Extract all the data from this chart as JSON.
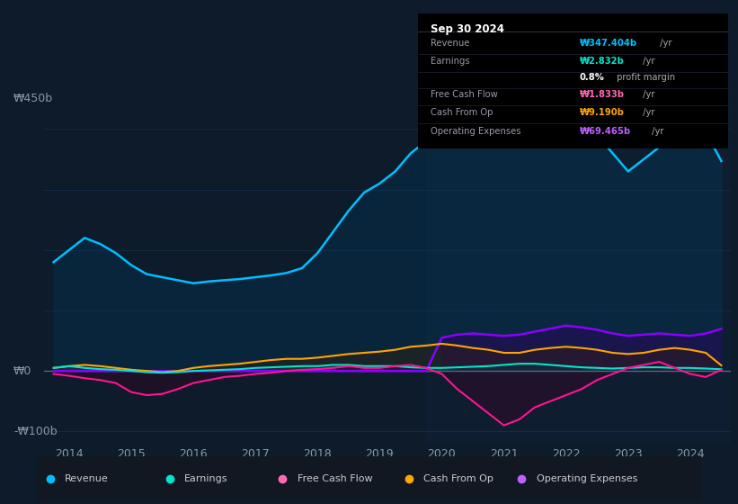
{
  "bg_color": "#0d1b2a",
  "plot_bg_color": "#0d1b2a",
  "ylabel_top": "₩450b",
  "ylabel_zero": "₩0",
  "ylabel_bottom": "-₩100b",
  "x_ticks": [
    2014,
    2015,
    2016,
    2017,
    2018,
    2019,
    2020,
    2021,
    2022,
    2023,
    2024
  ],
  "legend": [
    {
      "label": "Revenue",
      "color": "#00bfff"
    },
    {
      "label": "Earnings",
      "color": "#00e5cc"
    },
    {
      "label": "Free Cash Flow",
      "color": "#ff69b4"
    },
    {
      "label": "Cash From Op",
      "color": "#ffa500"
    },
    {
      "label": "Operating Expenses",
      "color": "#bf5fff"
    }
  ],
  "series": {
    "x": [
      2013.75,
      2014.0,
      2014.25,
      2014.5,
      2014.75,
      2015.0,
      2015.25,
      2015.5,
      2015.75,
      2016.0,
      2016.25,
      2016.5,
      2016.75,
      2017.0,
      2017.25,
      2017.5,
      2017.75,
      2018.0,
      2018.25,
      2018.5,
      2018.75,
      2019.0,
      2019.25,
      2019.5,
      2019.75,
      2020.0,
      2020.25,
      2020.5,
      2020.75,
      2021.0,
      2021.25,
      2021.5,
      2021.75,
      2022.0,
      2022.25,
      2022.5,
      2022.75,
      2023.0,
      2023.25,
      2023.5,
      2023.75,
      2024.0,
      2024.25,
      2024.5
    ],
    "revenue": [
      180,
      200,
      220,
      210,
      195,
      175,
      160,
      155,
      150,
      145,
      148,
      150,
      152,
      155,
      158,
      162,
      170,
      195,
      230,
      265,
      295,
      310,
      330,
      360,
      380,
      390,
      395,
      400,
      405,
      420,
      440,
      460,
      450,
      440,
      420,
      390,
      360,
      330,
      350,
      370,
      380,
      390,
      395,
      347
    ],
    "earnings": [
      5,
      8,
      5,
      3,
      2,
      0,
      -2,
      -3,
      -2,
      0,
      1,
      2,
      3,
      5,
      6,
      7,
      8,
      8,
      10,
      10,
      8,
      8,
      8,
      6,
      5,
      5,
      6,
      7,
      8,
      10,
      12,
      12,
      10,
      8,
      6,
      5,
      4,
      5,
      6,
      6,
      5,
      5,
      4,
      2.832
    ],
    "free_cash_flow": [
      -5,
      -8,
      -12,
      -15,
      -20,
      -35,
      -40,
      -38,
      -30,
      -20,
      -15,
      -10,
      -8,
      -5,
      -3,
      0,
      2,
      3,
      5,
      8,
      5,
      5,
      8,
      10,
      5,
      -5,
      -30,
      -50,
      -70,
      -90,
      -80,
      -60,
      -50,
      -40,
      -30,
      -15,
      -5,
      5,
      10,
      15,
      5,
      -5,
      -10,
      1.833
    ],
    "cash_from_op": [
      5,
      8,
      10,
      8,
      5,
      2,
      0,
      -2,
      0,
      5,
      8,
      10,
      12,
      15,
      18,
      20,
      20,
      22,
      25,
      28,
      30,
      32,
      35,
      40,
      42,
      45,
      42,
      38,
      35,
      30,
      30,
      35,
      38,
      40,
      38,
      35,
      30,
      28,
      30,
      35,
      38,
      35,
      30,
      9.19
    ],
    "operating_expenses": [
      0,
      0,
      0,
      0,
      0,
      0,
      0,
      0,
      0,
      0,
      0,
      0,
      0,
      0,
      0,
      0,
      0,
      0,
      0,
      0,
      0,
      0,
      0,
      0,
      0,
      55,
      60,
      62,
      60,
      58,
      60,
      65,
      70,
      75,
      72,
      68,
      62,
      58,
      60,
      62,
      60,
      58,
      62,
      69.465
    ]
  },
  "colors": {
    "revenue": "#00bfff",
    "earnings": "#00e5cc",
    "free_cash_flow": "#ff1493",
    "cash_from_op": "#ffa500",
    "operating_expenses": "#8b00ff"
  },
  "fill_colors": {
    "revenue": "#003a5c",
    "earnings": "#004040",
    "free_cash_flow": "#3d0020",
    "cash_from_op": "#3d2000",
    "operating_expenses": "#2d0060"
  },
  "grid_color": "#1e3a5f",
  "zero_line_color": "#4a6a8a",
  "info_box": {
    "title": "Sep 30 2024",
    "rows": [
      {
        "label": "Revenue",
        "value": "₩347.404b",
        "suffix": " /yr",
        "value_color": "#00bfff"
      },
      {
        "label": "Earnings",
        "value": "₩2.832b",
        "suffix": " /yr",
        "value_color": "#00e5cc"
      },
      {
        "label": "",
        "value": "0.8%",
        "suffix": " profit margin",
        "value_color": "#ffffff"
      },
      {
        "label": "Free Cash Flow",
        "value": "₩1.833b",
        "suffix": " /yr",
        "value_color": "#ff69b4"
      },
      {
        "label": "Cash From Op",
        "value": "₩9.190b",
        "suffix": " /yr",
        "value_color": "#ffa500"
      },
      {
        "label": "Operating Expenses",
        "value": "₩69.465b",
        "suffix": " /yr",
        "value_color": "#bf5fff"
      }
    ]
  }
}
